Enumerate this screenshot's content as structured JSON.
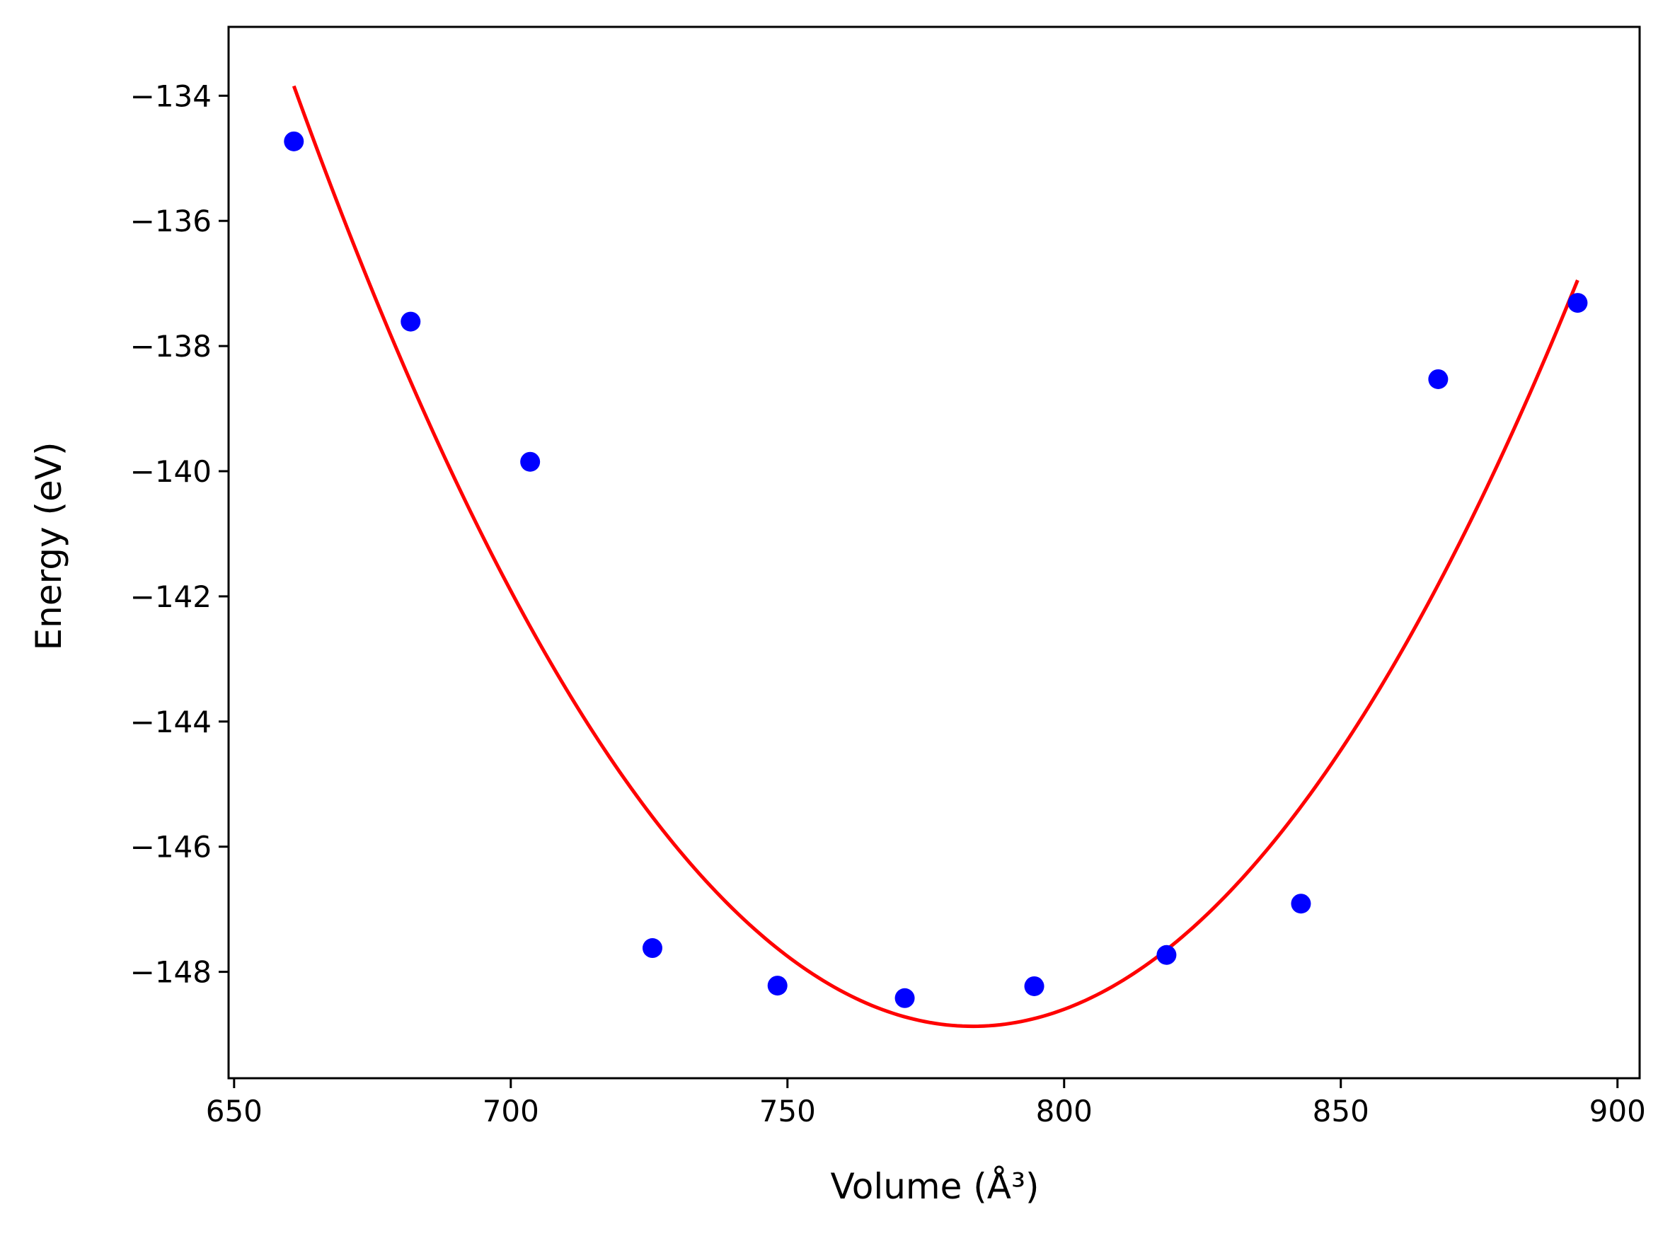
{
  "chart_data": {
    "type": "scatter",
    "xlabel": "Volume (Å³)",
    "ylabel": "Energy (eV)",
    "xlim": [
      649,
      904
    ],
    "ylim": [
      -149.7,
      -132.9
    ],
    "xticks": [
      650,
      700,
      750,
      800,
      850,
      900
    ],
    "yticks": [
      -134,
      -136,
      -138,
      -140,
      -142,
      -144,
      -146,
      -148
    ],
    "xtick_labels": [
      "650",
      "700",
      "750",
      "800",
      "850",
      "900"
    ],
    "ytick_labels": [
      "−134",
      "−136",
      "−138",
      "−140",
      "−142",
      "−144",
      "−146",
      "−148"
    ],
    "grid": false,
    "series": [
      {
        "kind": "scatter",
        "color": "#0000ff",
        "x": [
          660.8,
          681.9,
          703.5,
          725.6,
          748.2,
          771.2,
          794.6,
          818.5,
          842.8,
          867.6,
          892.8
        ],
        "y": [
          -134.73,
          -137.61,
          -139.85,
          -147.62,
          -148.22,
          -148.42,
          -148.23,
          -147.73,
          -146.91,
          -138.53,
          -137.31
        ]
      },
      {
        "kind": "line",
        "color": "#ff0000",
        "vertex_x": 783.5,
        "vertex_y": -148.87,
        "x_start": 660.8,
        "x_end": 892.8,
        "coefficients": {
          "a": 0.000998
        }
      }
    ]
  }
}
